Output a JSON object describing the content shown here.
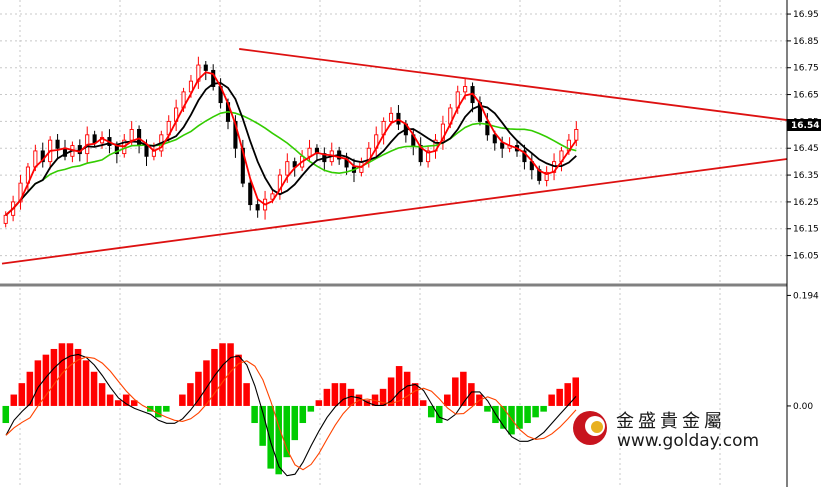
{
  "chart_data": [
    {
      "type": "candlestick",
      "title": "",
      "xlabel": "",
      "ylabel": "",
      "ylim": [
        16.0,
        16.98
      ],
      "y_ticks": [
        "16.95",
        "16.85",
        "16.75",
        "16.65",
        "16.55",
        "16.45",
        "16.35",
        "16.25",
        "16.15",
        "16.05"
      ],
      "current_price": "16.54",
      "grid": true,
      "closes": [
        16.2,
        16.25,
        16.32,
        16.38,
        16.44,
        16.4,
        16.48,
        16.45,
        16.42,
        16.46,
        16.43,
        16.5,
        16.47,
        16.49,
        16.46,
        16.43,
        16.48,
        16.52,
        16.46,
        16.42,
        16.44,
        16.5,
        16.55,
        16.6,
        16.66,
        16.7,
        16.76,
        16.74,
        16.68,
        16.62,
        16.55,
        16.45,
        16.32,
        16.24,
        16.22,
        16.26,
        16.28,
        16.35,
        16.4,
        16.38,
        16.42,
        16.45,
        16.43,
        16.4,
        16.44,
        16.41,
        16.38,
        16.36,
        16.4,
        16.45,
        16.5,
        16.55,
        16.58,
        16.54,
        16.5,
        16.46,
        16.4,
        16.44,
        16.48,
        16.54,
        16.6,
        16.66,
        16.68,
        16.62,
        16.55,
        16.5,
        16.47,
        16.45,
        16.46,
        16.44,
        16.4,
        16.37,
        16.33,
        16.36,
        16.4,
        16.44,
        16.48,
        16.52
      ],
      "trendlines": [
        {
          "from": {
            "index": 41,
            "price": 16.82
          },
          "to": {
            "index": 138,
            "price": 16.555
          }
        },
        {
          "from": {
            "index": -1,
            "price": 16.02
          },
          "to": {
            "index": 138,
            "price": 16.41
          }
        }
      ]
    },
    {
      "type": "bar",
      "title": "",
      "ylim": [
        -0.13,
        0.2
      ],
      "y_ticks": [
        "0.194",
        "0.00"
      ],
      "histogram": [
        -0.03,
        0.02,
        0.04,
        0.06,
        0.08,
        0.09,
        0.1,
        0.11,
        0.11,
        0.1,
        0.08,
        0.06,
        0.04,
        0.02,
        0.01,
        0.02,
        0.01,
        0.0,
        -0.01,
        -0.02,
        -0.01,
        0.0,
        0.02,
        0.04,
        0.06,
        0.08,
        0.1,
        0.11,
        0.11,
        0.09,
        0.04,
        -0.03,
        -0.07,
        -0.11,
        -0.12,
        -0.09,
        -0.06,
        -0.03,
        -0.01,
        0.01,
        0.03,
        0.04,
        0.04,
        0.03,
        0.02,
        0.01,
        0.02,
        0.03,
        0.05,
        0.07,
        0.06,
        0.04,
        0.01,
        -0.02,
        -0.03,
        0.02,
        0.05,
        0.06,
        0.04,
        0.02,
        -0.01,
        -0.03,
        -0.04,
        -0.05,
        -0.04,
        -0.03,
        -0.02,
        -0.01,
        0.02,
        0.03,
        0.04,
        0.05
      ]
    }
  ],
  "logo": {
    "chinese": "金盛貴金屬",
    "url": "www.golday.com"
  },
  "colors": {
    "up_candle": "#ff0000",
    "down_candle": "#000000",
    "ma_fast": "#ff0000",
    "ma_mid": "#000000",
    "ma_slow": "#33cc00",
    "trendline": "#dd1111",
    "hist_up": "#ff0000",
    "hist_down": "#00cc00",
    "macd": "#000000",
    "signal": "#ff4400"
  }
}
